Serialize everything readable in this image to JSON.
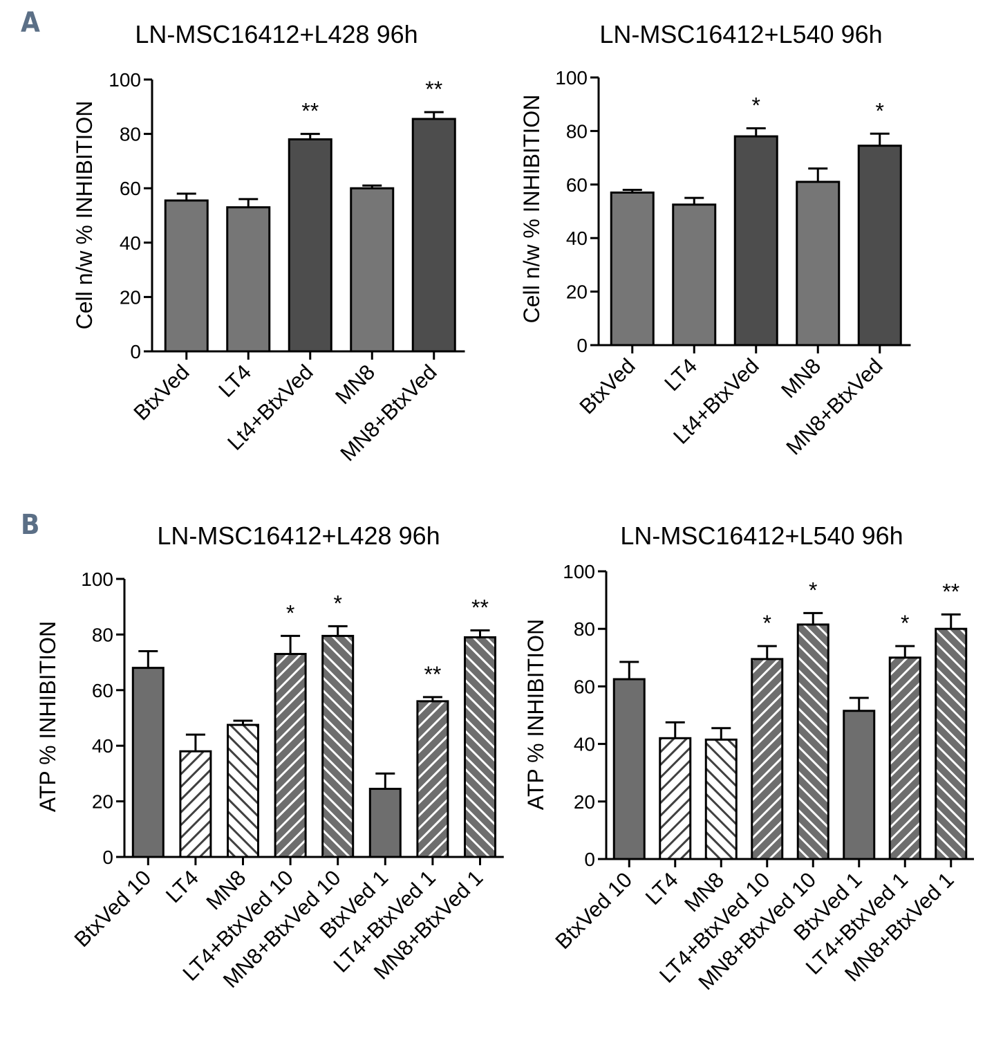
{
  "panels": {
    "A": {
      "letter": "A"
    },
    "B": {
      "letter": "B"
    }
  },
  "colors": {
    "light_bar": "#767676",
    "dark_bar": "#4d4d4d",
    "atp_solid": "#6e6e6e",
    "axis": "#000000",
    "hatch_line": "#ffffff"
  },
  "chart_data": [
    {
      "id": "A-left",
      "panel": "A",
      "type": "bar",
      "title": "LN-MSC16412+L428 96h",
      "xlabel": "",
      "ylabel": "Cell n/w % INHIBITION",
      "ylim": [
        0,
        100
      ],
      "yticks": [
        "0",
        "20",
        "40",
        "60",
        "80",
        "100"
      ],
      "categories": [
        "BtxVed",
        "LT4",
        "Lt4+BtxVed",
        "MN8",
        "MN8+BtxVed"
      ],
      "values": [
        55.5,
        53,
        78,
        60,
        85.5
      ],
      "errors": [
        2.5,
        3,
        2,
        1,
        2.5
      ],
      "fills": [
        "light",
        "light",
        "dark",
        "light",
        "dark"
      ],
      "significance": [
        "",
        "",
        "**",
        "",
        "**"
      ]
    },
    {
      "id": "A-right",
      "panel": "A",
      "type": "bar",
      "title": "LN-MSC16412+L540  96h",
      "xlabel": "",
      "ylabel": "Cell n/w % INHIBITION",
      "ylim": [
        0,
        100
      ],
      "yticks": [
        "0",
        "20",
        "40",
        "60",
        "80",
        "100"
      ],
      "categories": [
        "BtxVed",
        "LT4",
        "Lt4+BtxVed",
        "MN8",
        "MN8+BtxVed"
      ],
      "values": [
        57,
        52.5,
        78,
        61,
        74.5
      ],
      "errors": [
        1,
        2.5,
        3,
        5,
        4.5
      ],
      "fills": [
        "light",
        "light",
        "dark",
        "light",
        "dark"
      ],
      "significance": [
        "",
        "",
        "*",
        "",
        "*"
      ]
    },
    {
      "id": "B-left",
      "panel": "B",
      "type": "bar",
      "title": "LN-MSC16412+L428 96h",
      "xlabel": "",
      "ylabel": "ATP % INHIBITION",
      "ylim": [
        0,
        100
      ],
      "yticks": [
        "0",
        "20",
        "40",
        "60",
        "80",
        "100"
      ],
      "categories": [
        "BtxVed 10",
        "LT4",
        "MN8",
        "LT4+BtxVed 10",
        "MN8+BtxVed 10",
        "BtxVed 1",
        "LT4+BtxVed 1",
        "MN8+BtxVed 1"
      ],
      "values": [
        68,
        38,
        47.5,
        73,
        79.5,
        24.5,
        56,
        79
      ],
      "errors": [
        6,
        6,
        1.5,
        6.5,
        3.5,
        5.5,
        1.5,
        2.5
      ],
      "fills": [
        "solid",
        "hatch-fwd-white",
        "hatch-back-white",
        "hatch-fwd-gray",
        "hatch-back-gray",
        "solid",
        "hatch-fwd-gray",
        "hatch-back-gray"
      ],
      "significance": [
        "",
        "",
        "",
        "*",
        "*",
        "",
        "**",
        "**"
      ]
    },
    {
      "id": "B-right",
      "panel": "B",
      "type": "bar",
      "title": "LN-MSC16412+L540  96h",
      "xlabel": "",
      "ylabel": "ATP % INHIBITION",
      "ylim": [
        0,
        100
      ],
      "yticks": [
        "0",
        "20",
        "40",
        "60",
        "80",
        "100"
      ],
      "categories": [
        "BtxVed 10",
        "LT4",
        "MN8",
        "LT4+BtxVed 10",
        "MN8+BtxVed 10",
        "BtxVed 1",
        "LT4+BtxVed 1",
        "MN8+BtxVed 1"
      ],
      "values": [
        62.5,
        42,
        41.5,
        69.5,
        81.5,
        51.5,
        70,
        80
      ],
      "errors": [
        6,
        5.5,
        4,
        4.5,
        4,
        4.5,
        4,
        5
      ],
      "fills": [
        "solid",
        "hatch-fwd-white",
        "hatch-back-white",
        "hatch-fwd-gray",
        "hatch-back-gray",
        "solid",
        "hatch-fwd-gray",
        "hatch-back-gray"
      ],
      "significance": [
        "",
        "",
        "",
        "*",
        "*",
        "",
        "*",
        "**"
      ]
    }
  ]
}
